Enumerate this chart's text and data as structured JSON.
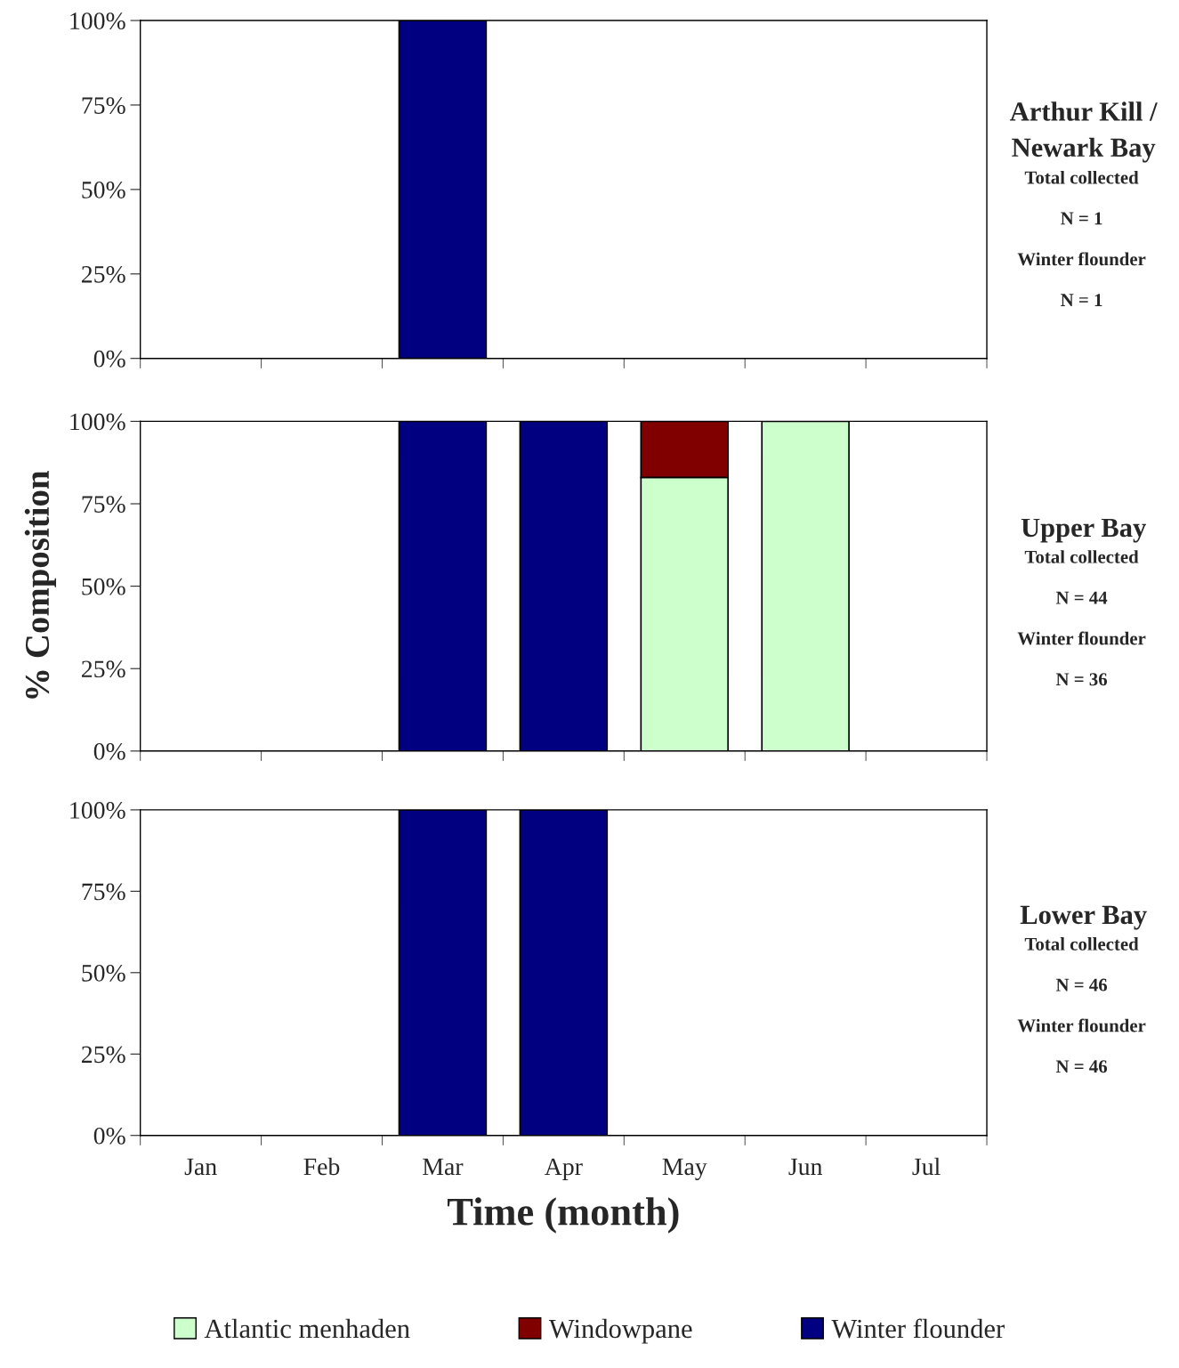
{
  "chart_data": [
    {
      "type": "bar",
      "stacked": true,
      "annotations": [
        "Arthur Kill / Newark Bay",
        "Total collected",
        "N = 1",
        "Winter flounder",
        "N = 1"
      ],
      "categories": [
        null,
        null,
        null,
        null,
        null,
        null,
        null
      ],
      "ylim": [
        0,
        100
      ],
      "yticks": [
        {
          "value": 0,
          "label": "0%"
        },
        {
          "value": 25,
          "label": "25%"
        },
        {
          "value": 50,
          "label": "50%"
        },
        {
          "value": 75,
          "label": "75%"
        },
        {
          "value": 100,
          "label": "100%"
        }
      ],
      "tick_labels": "y",
      "grid": false,
      "series": [
        {
          "color": "#000080",
          "values": [
            null,
            null,
            100,
            null,
            null,
            null,
            null
          ]
        }
      ]
    },
    {
      "type": "bar",
      "stacked": true,
      "ylabel": "% Composition",
      "annotations": [
        "Upper Bay",
        "Total collected",
        "N = 44",
        "Winter flounder",
        "N = 36"
      ],
      "categories": [
        null,
        null,
        null,
        null,
        null,
        null,
        null
      ],
      "ylim": [
        0,
        100
      ],
      "yticks": [
        {
          "value": 0,
          "label": "0%"
        },
        {
          "value": 25,
          "label": "25%"
        },
        {
          "value": 50,
          "label": "50%"
        },
        {
          "value": 75,
          "label": "75%"
        },
        {
          "value": 100,
          "label": "100%"
        }
      ],
      "tick_labels": "y",
      "grid": false,
      "series": [
        {
          "color": "#ccffcc",
          "values": [
            null,
            null,
            null,
            null,
            83,
            100,
            null
          ]
        },
        {
          "color": "#800000",
          "values": [
            null,
            null,
            null,
            null,
            17,
            null,
            null
          ]
        },
        {
          "color": "#000080",
          "values": [
            null,
            null,
            100,
            100,
            null,
            null,
            null
          ]
        }
      ]
    },
    {
      "type": "bar",
      "stacked": true,
      "xlabel": "Time (month)",
      "annotations": [
        "Lower Bay",
        "Total collected",
        "N = 46",
        "Winter flounder",
        "N = 46"
      ],
      "categories": [
        "Jan",
        "Feb",
        "Mar",
        "Apr",
        "May",
        "Jun",
        "Jul"
      ],
      "ylim": [
        0,
        100
      ],
      "yticks": [
        {
          "value": 0,
          "label": "0%"
        },
        {
          "value": 25,
          "label": "25%"
        },
        {
          "value": 50,
          "label": "50%"
        },
        {
          "value": 75,
          "label": "75%"
        },
        {
          "value": 100,
          "label": "100%"
        }
      ],
      "grid": false,
      "legend": "bottom",
      "series": [
        {
          "name": "Atlantic menhaden",
          "color": "#ccffcc",
          "values": [
            null,
            null,
            null,
            null,
            null,
            null,
            null
          ]
        },
        {
          "name": "Windowpane",
          "color": "#800000",
          "values": [
            null,
            null,
            null,
            null,
            null,
            null,
            null
          ]
        },
        {
          "name": "Winter flounder",
          "color": "#000080",
          "values": [
            null,
            null,
            100,
            100,
            null,
            null,
            null
          ]
        }
      ]
    }
  ]
}
